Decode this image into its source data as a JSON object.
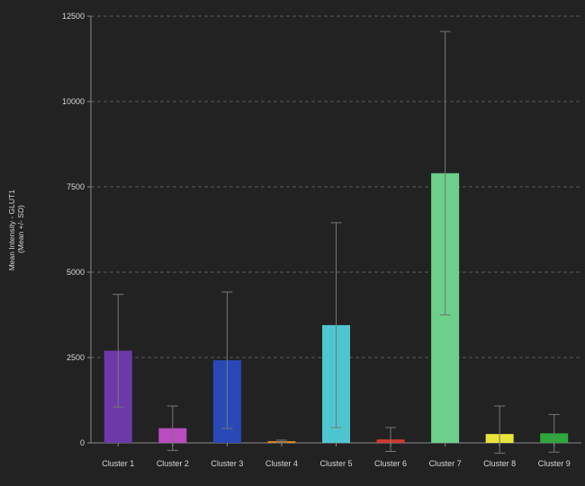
{
  "chart_data": {
    "type": "bar",
    "ylabel": [
      "Mean Intensity - GLUT1",
      "(Mean +/- SD)"
    ],
    "ylim": [
      0,
      12500
    ],
    "yticks": [
      0,
      2500,
      5000,
      7500,
      10000,
      12500
    ],
    "ytick_labels": [
      "0",
      "2500",
      "5000",
      "7500",
      "10000",
      "12500"
    ],
    "grid": "horizontal dashed",
    "categories": [
      "Cluster 1",
      "Cluster 2",
      "Cluster 3",
      "Cluster 4",
      "Cluster 5",
      "Cluster 6",
      "Cluster 7",
      "Cluster 8",
      "Cluster 9"
    ],
    "values": [
      2700,
      430,
      2420,
      50,
      3450,
      100,
      7900,
      260,
      280
    ],
    "error_sd": [
      1650,
      650,
      2000,
      30,
      3000,
      350,
      4150,
      820,
      550
    ],
    "colors": [
      "#6b3aa8",
      "#b84cc0",
      "#2a49b8",
      "#e0891e",
      "#4fc6cf",
      "#d23a2c",
      "#6ccf8a",
      "#e9e23a",
      "#2ea83c"
    ],
    "background_color": "#222222"
  }
}
